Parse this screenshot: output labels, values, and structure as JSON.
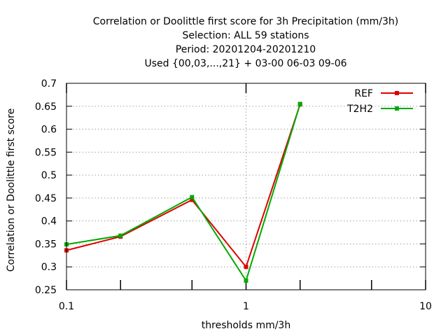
{
  "chart_data": {
    "type": "line",
    "title_lines": [
      "Correlation or Doolittle first score  for 3h Precipitation (mm/3h)",
      "Selection: ALL     59 stations",
      "Period: 20201204-20201210",
      "Used {00,03,...,21} + 03-00 06-03 09-06"
    ],
    "xlabel": "thresholds mm/3h",
    "ylabel": "Correlation or Doolittle first score",
    "x_scale": "log",
    "xlim": [
      0.1,
      10
    ],
    "ylim": [
      0.25,
      0.7
    ],
    "x_ticks": [
      0.1,
      1,
      10
    ],
    "x_tick_labels": [
      "0.1",
      "1",
      "10"
    ],
    "x_minor_ticks": [
      0.2,
      0.5,
      2,
      5
    ],
    "y_ticks": [
      0.25,
      0.3,
      0.35,
      0.4,
      0.45,
      0.5,
      0.55,
      0.6,
      0.65,
      0.7
    ],
    "y_tick_labels": [
      "0.25",
      "0.3",
      "0.35",
      "0.4",
      "0.45",
      "0.5",
      "0.55",
      "0.6",
      "0.65",
      "0.7"
    ],
    "grid": true,
    "legend_position": "top-right",
    "x": [
      0.1,
      0.2,
      0.5,
      1,
      2
    ],
    "series": [
      {
        "name": "REF",
        "color": "#dd0000",
        "values": [
          0.336,
          0.366,
          0.446,
          0.3,
          0.654
        ]
      },
      {
        "name": "T2H2",
        "color": "#00aa00",
        "values": [
          0.349,
          0.368,
          0.452,
          0.27,
          0.655
        ]
      }
    ]
  }
}
